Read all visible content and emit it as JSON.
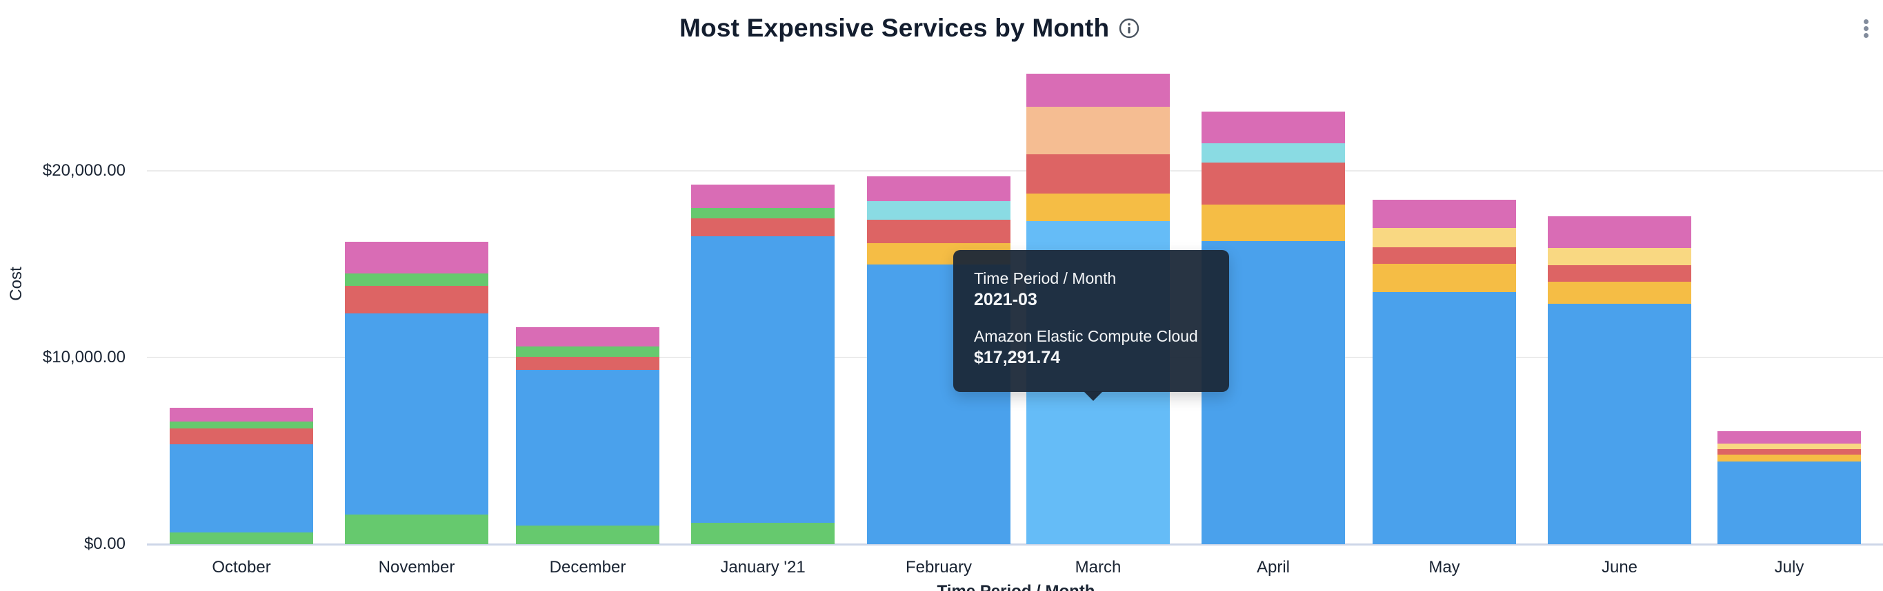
{
  "header": {
    "title": "Most Expensive Services by Month",
    "info_icon": "info-circle-icon",
    "menu_icon": "kebab-menu-icon"
  },
  "y_axis": {
    "title": "Cost",
    "ticks": [
      {
        "value": 20000,
        "label": "$20,000.00"
      },
      {
        "value": 10000,
        "label": "$10,000.00"
      },
      {
        "value": 0,
        "label": "$0.00"
      }
    ]
  },
  "x_axis": {
    "title": "Time Period / Month"
  },
  "tooltip": {
    "dimension_label": "Time Period / Month",
    "dimension_value": "2021-03",
    "series_label": "Amazon Elastic Compute Cloud",
    "series_value": "$17,291.74"
  },
  "chart_data": {
    "type": "stacked_bar",
    "title": "Most Expensive Services by Month",
    "xlabel": "Time Period / Month",
    "ylabel": "Cost",
    "ylim": [
      0,
      25500
    ],
    "grid": "horizontal",
    "legend": "none",
    "currency": "USD",
    "categories": [
      "October",
      "November",
      "December",
      "January '21",
      "February",
      "March",
      "April",
      "May",
      "June",
      "July"
    ],
    "palette": {
      "blue": "#4AA1EC",
      "lightblue": "#65BCF7",
      "green": "#66C96E",
      "red": "#DD6464",
      "pink": "#D96CB5",
      "orange": "#F5BD45",
      "peach": "#F5BD92",
      "cyan": "#8ADBE3",
      "lightyellow": "#F9D882"
    },
    "known_series": {
      "blue": "Amazon Elastic Compute Cloud",
      "lightblue": "Amazon Elastic Compute Cloud (hovered)"
    },
    "hovered_bar": "March",
    "bars": [
      {
        "month": "October",
        "total": 7321,
        "segments": [
          {
            "color": "green",
            "value": 629
          },
          {
            "color": "blue",
            "value": 4732
          },
          {
            "color": "red",
            "value": 850
          },
          {
            "color": "green",
            "value": 370
          },
          {
            "color": "pink",
            "value": 740
          }
        ]
      },
      {
        "month": "November",
        "total": 16192,
        "segments": [
          {
            "color": "green",
            "value": 1590
          },
          {
            "color": "blue",
            "value": 10758
          },
          {
            "color": "red",
            "value": 1479
          },
          {
            "color": "green",
            "value": 665
          },
          {
            "color": "pink",
            "value": 1700
          }
        ]
      },
      {
        "month": "December",
        "total": 11608,
        "segments": [
          {
            "color": "green",
            "value": 998
          },
          {
            "color": "blue",
            "value": 8355
          },
          {
            "color": "red",
            "value": 702
          },
          {
            "color": "green",
            "value": 518
          },
          {
            "color": "pink",
            "value": 1035
          }
        ]
      },
      {
        "month": "January '21",
        "total": 19262,
        "segments": [
          {
            "color": "green",
            "value": 1146
          },
          {
            "color": "blue",
            "value": 15343
          },
          {
            "color": "red",
            "value": 961
          },
          {
            "color": "green",
            "value": 555
          },
          {
            "color": "pink",
            "value": 1257
          }
        ]
      },
      {
        "month": "February",
        "total": 19706,
        "segments": [
          {
            "color": "blue",
            "value": 14974
          },
          {
            "color": "orange",
            "value": 1146
          },
          {
            "color": "red",
            "value": 1257
          },
          {
            "color": "cyan",
            "value": 998
          },
          {
            "color": "pink",
            "value": 1331
          }
        ]
      },
      {
        "month": "March",
        "total": 25204,
        "segments": [
          {
            "color": "lightblue",
            "value": 17291.74
          },
          {
            "color": "orange",
            "value": 1479
          },
          {
            "color": "red",
            "value": 2107
          },
          {
            "color": "peach",
            "value": 2551
          },
          {
            "color": "pink",
            "value": 1775
          }
        ]
      },
      {
        "month": "April",
        "total": 23181,
        "segments": [
          {
            "color": "blue",
            "value": 16230
          },
          {
            "color": "orange",
            "value": 1960
          },
          {
            "color": "red",
            "value": 2255
          },
          {
            "color": "cyan",
            "value": 1035
          },
          {
            "color": "pink",
            "value": 1701
          }
        ]
      },
      {
        "month": "May",
        "total": 18448,
        "segments": [
          {
            "color": "blue",
            "value": 13494
          },
          {
            "color": "orange",
            "value": 1516
          },
          {
            "color": "red",
            "value": 887
          },
          {
            "color": "lightyellow",
            "value": 1035
          },
          {
            "color": "pink",
            "value": 1516
          }
        ]
      },
      {
        "month": "June",
        "total": 17560,
        "segments": [
          {
            "color": "blue",
            "value": 12865
          },
          {
            "color": "orange",
            "value": 1183
          },
          {
            "color": "red",
            "value": 887
          },
          {
            "color": "lightyellow",
            "value": 924
          },
          {
            "color": "pink",
            "value": 1701
          }
        ]
      },
      {
        "month": "July",
        "total": 6063,
        "segments": [
          {
            "color": "blue",
            "value": 4436
          },
          {
            "color": "orange",
            "value": 370
          },
          {
            "color": "red",
            "value": 296
          },
          {
            "color": "lightyellow",
            "value": 296
          },
          {
            "color": "pink",
            "value": 665
          }
        ]
      }
    ]
  }
}
